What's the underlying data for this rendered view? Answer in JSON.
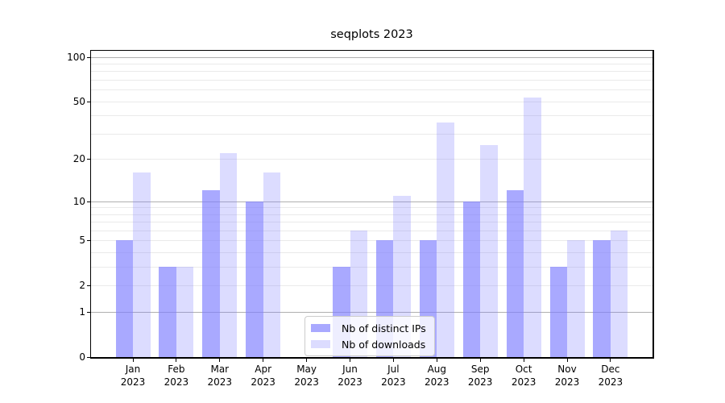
{
  "chart_data": {
    "type": "bar",
    "title": "seqplots 2023",
    "categories": [
      "Jan 2023",
      "Feb 2023",
      "Mar 2023",
      "Apr 2023",
      "May 2023",
      "Jun 2023",
      "Jul 2023",
      "Aug 2023",
      "Sep 2023",
      "Oct 2023",
      "Nov 2023",
      "Dec 2023"
    ],
    "series": [
      {
        "name": "Nb of distinct IPs",
        "color": "rgba(124,124,255,0.66)",
        "values": [
          5,
          3,
          12,
          10,
          0,
          3,
          5,
          5,
          10,
          12,
          3,
          5
        ]
      },
      {
        "name": "Nb of downloads",
        "color": "rgba(124,124,255,0.27)",
        "values": [
          16,
          3,
          22,
          16,
          0,
          6,
          11,
          36,
          25,
          53,
          5,
          6
        ]
      }
    ],
    "yscale": "log1p",
    "ylim": [
      0,
      110
    ],
    "ytick_labels": [
      0,
      1,
      2,
      5,
      10,
      20,
      50,
      100
    ],
    "major_gridlines": [
      1,
      10,
      100
    ],
    "minor_gridlines": [
      2,
      3,
      4,
      5,
      6,
      7,
      8,
      9,
      20,
      30,
      40,
      50,
      60,
      70,
      80,
      90
    ],
    "grid": true,
    "legend_position": "lower center",
    "colors": {
      "bar_base": "#7c7cff",
      "bar_distinct_ips": "#a9a9fb",
      "bar_downloads": "#dcdcfb",
      "major_grid": "#b0b0b0",
      "minor_grid": "#eaeaea",
      "spine": "#000000",
      "text": "#000000",
      "background": "#ffffff"
    }
  }
}
